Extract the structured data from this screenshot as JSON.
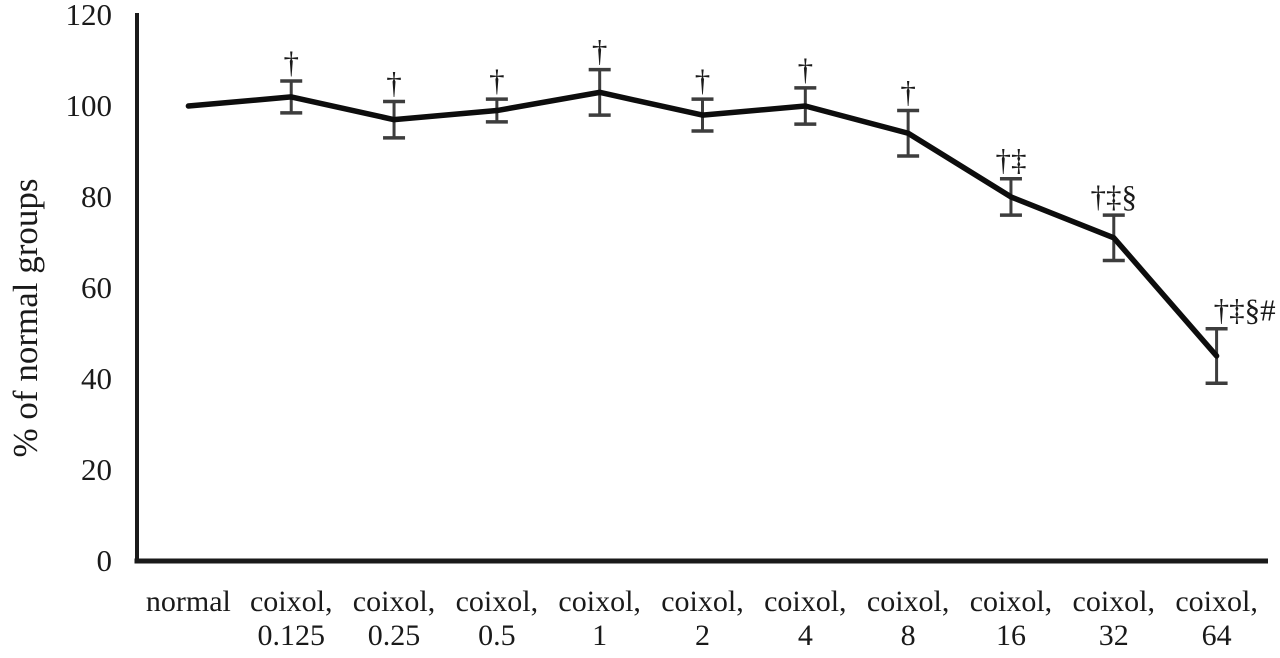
{
  "page": {
    "background": "#ffffff"
  },
  "chart_data": {
    "type": "line",
    "title": "",
    "xlabel": "",
    "ylabel": "% of normal groups",
    "ylim": [
      0,
      120
    ],
    "yticks": [
      0,
      20,
      40,
      60,
      80,
      100,
      120
    ],
    "grid": false,
    "legend": "none",
    "categories": [
      {
        "label": "normal",
        "dose": ""
      },
      {
        "label": "coixol,",
        "dose": "0.125"
      },
      {
        "label": "coixol,",
        "dose": "0.25"
      },
      {
        "label": "coixol,",
        "dose": "0.5"
      },
      {
        "label": "coixol,",
        "dose": "1"
      },
      {
        "label": "coixol,",
        "dose": "2"
      },
      {
        "label": "coixol,",
        "dose": "4"
      },
      {
        "label": "coixol,",
        "dose": "8"
      },
      {
        "label": "coixol,",
        "dose": "16"
      },
      {
        "label": "coixol,",
        "dose": "32"
      },
      {
        "label": "coixol,",
        "dose": "64"
      }
    ],
    "series": [
      {
        "name": "% of normal groups",
        "values": [
          100,
          102,
          97,
          99,
          103,
          98,
          100,
          94,
          80,
          71,
          45
        ],
        "errors": [
          0,
          3.5,
          4,
          2.5,
          5,
          3.5,
          4,
          5,
          4,
          5,
          6
        ],
        "annotations": [
          "",
          "†",
          "†",
          "†",
          "†",
          "†",
          "†",
          "†",
          "†‡",
          "†‡§",
          "†‡§#"
        ],
        "annotation_x_offsets": [
          0,
          0,
          0,
          0,
          0,
          0,
          0,
          0,
          0,
          0,
          28
        ]
      }
    ],
    "colors": {
      "line": "#0d0d0d",
      "error_bar": "#3d3d3d",
      "axis": "#1a1a1a",
      "text": "#1a1a1a"
    }
  }
}
